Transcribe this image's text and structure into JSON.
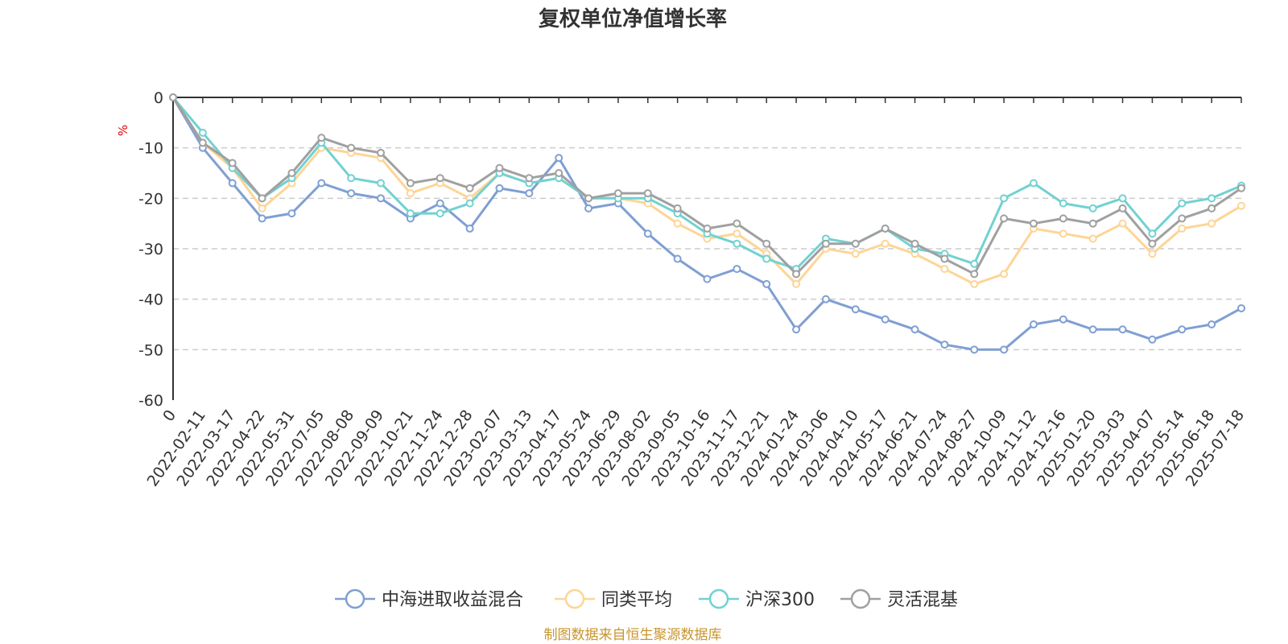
{
  "chart_data": {
    "type": "line",
    "title": "复权单位净值增长率",
    "ylabel": "%",
    "ylim": [
      -60,
      0
    ],
    "yticks": [
      0,
      -10,
      -20,
      -30,
      -40,
      -50,
      -60
    ],
    "grid": true,
    "legend_position": "bottom",
    "categories": [
      "0",
      "2022-02-11",
      "2022-03-17",
      "2022-04-22",
      "2022-05-31",
      "2022-07-05",
      "2022-08-08",
      "2022-09-09",
      "2022-10-21",
      "2022-11-24",
      "2022-12-28",
      "2023-02-07",
      "2023-03-13",
      "2023-04-17",
      "2023-05-24",
      "2023-06-29",
      "2023-08-02",
      "2023-09-05",
      "2023-10-16",
      "2023-11-17",
      "2023-12-21",
      "2024-01-24",
      "2024-03-06",
      "2024-04-10",
      "2024-05-17",
      "2024-06-21",
      "2024-07-24",
      "2024-08-27",
      "2024-10-09",
      "2024-11-12",
      "2024-12-16",
      "2025-01-20",
      "2025-03-03",
      "2025-04-07",
      "2025-05-14",
      "2025-06-18",
      "2025-07-18"
    ],
    "series": [
      {
        "name": "中海进取收益混合",
        "color": "#7f9fd3",
        "values": [
          0,
          -10,
          -17,
          -24,
          -23,
          -17,
          -19,
          -20,
          -24,
          -21,
          -26,
          -18,
          -19,
          -12,
          -22,
          -21,
          -27,
          -32,
          -36,
          -34,
          -37,
          -46,
          -40,
          -42,
          -44,
          -46,
          -49,
          -50,
          -50,
          -45,
          -44,
          -46,
          -46,
          -48,
          -46,
          -45,
          -41.8
        ]
      },
      {
        "name": "同类平均",
        "color": "#fdd596",
        "values": [
          0,
          -9,
          -14,
          -22,
          -17,
          -10,
          -11,
          -12,
          -19,
          -17,
          -20,
          -15,
          -17,
          -16,
          -20,
          -20,
          -21,
          -25,
          -28,
          -27,
          -31,
          -37,
          -30,
          -31,
          -29,
          -31,
          -34,
          -37,
          -35,
          -26,
          -27,
          -28,
          -25,
          -31,
          -26,
          -25,
          -21.5
        ]
      },
      {
        "name": "沪深300",
        "color": "#72d1d1",
        "values": [
          0,
          -7,
          -14,
          -20,
          -16,
          -9,
          -16,
          -17,
          -23,
          -23,
          -21,
          -15,
          -17,
          -16,
          -20,
          -20,
          -20,
          -23,
          -27,
          -29,
          -32,
          -34,
          -28,
          -29,
          -26,
          -30,
          -31,
          -33,
          -20,
          -17,
          -21,
          -22,
          -20,
          -27,
          -21,
          -20,
          -17.5
        ]
      },
      {
        "name": "灵活混基",
        "color": "#a0a0a0",
        "values": [
          0,
          -9,
          -13,
          -20,
          -15,
          -8,
          -10,
          -11,
          -17,
          -16,
          -18,
          -14,
          -16,
          -15,
          -20,
          -19,
          -19,
          -22,
          -26,
          -25,
          -29,
          -35,
          -29,
          -29,
          -26,
          -29,
          -32,
          -35,
          -24,
          -25,
          -24,
          -25,
          -22,
          -29,
          -24,
          -22,
          -18
        ]
      }
    ]
  },
  "source_note": "制图数据来自恒生聚源数据库"
}
